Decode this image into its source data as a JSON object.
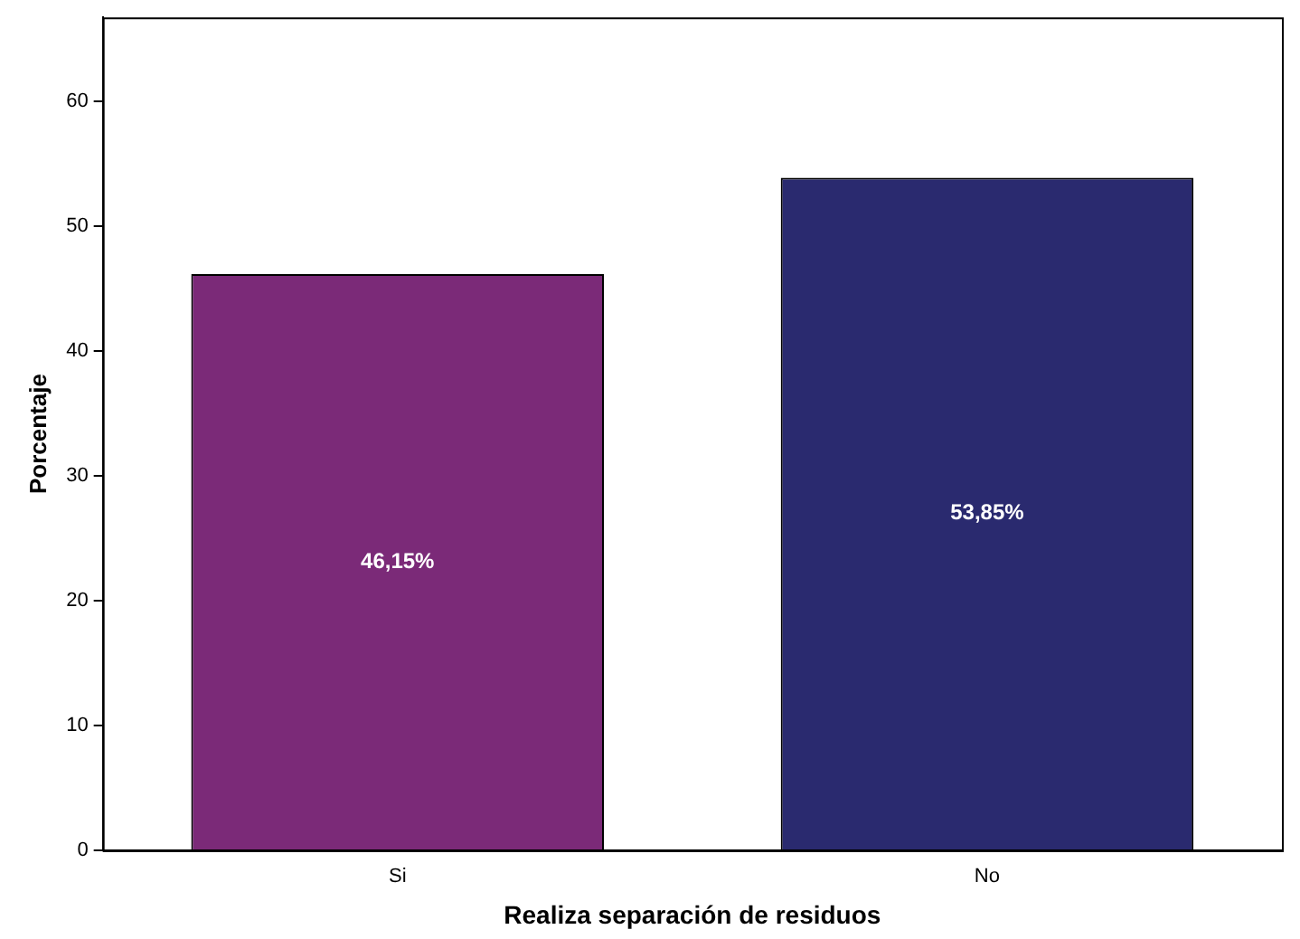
{
  "chart_data": {
    "type": "bar",
    "xlabel": "Realiza separación de residuos",
    "ylabel": "Porcentaje",
    "categories": [
      "Si",
      "No"
    ],
    "values": [
      46.15,
      53.85
    ],
    "colors": [
      "#7b2a78",
      "#2a2a6f"
    ],
    "value_labels": [
      "46,15%",
      "53,85%"
    ],
    "ylim": [
      0,
      66.7
    ],
    "yticks": [
      0,
      10,
      20,
      30,
      40,
      50,
      60
    ],
    "grid": false,
    "legend": false
  }
}
